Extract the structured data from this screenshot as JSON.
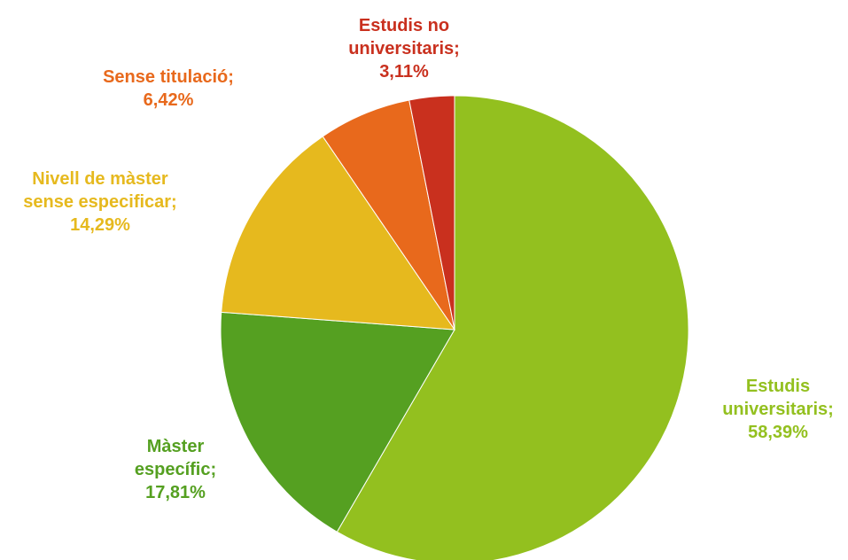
{
  "chart_data": {
    "type": "pie",
    "categories": [
      "Estudis universitaris;",
      "Màster específic;",
      "Nivell de màster sense especificar;",
      "Sense titulació;",
      "Estudis no universitaris;"
    ],
    "values": [
      58.39,
      17.81,
      14.29,
      6.42,
      3.11
    ],
    "value_labels": [
      "58,39%",
      "17,81%",
      "14,29%",
      "6,42%",
      "3,11%"
    ],
    "colors": [
      "#93c01f",
      "#55a021",
      "#e6b91e",
      "#e8691c",
      "#c9301e"
    ]
  }
}
